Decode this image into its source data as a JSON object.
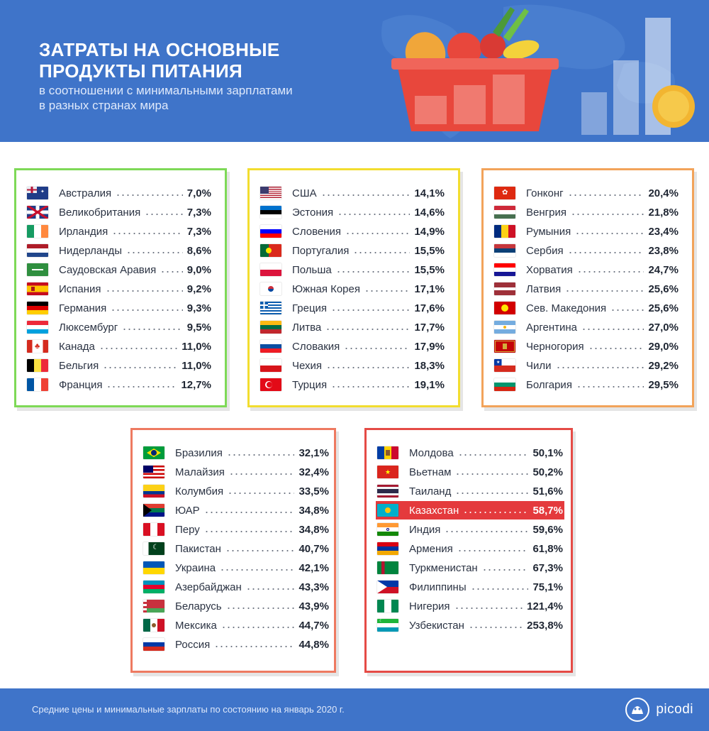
{
  "header": {
    "title_line1": "ЗАТРАТЫ НА ОСНОВНЫЕ",
    "title_line2": "ПРОДУКТЫ ПИТАНИЯ",
    "subtitle_line1": "в соотношении с минимальными зарплатами",
    "subtitle_line2": "в разных странах мира",
    "background_color": "#3f74c9"
  },
  "groups": [
    {
      "accent": "#7ed957",
      "rows": [
        {
          "country": "Австралия",
          "value": "7,0%",
          "flag": "australia"
        },
        {
          "country": "Великобритания",
          "value": "7,3%",
          "flag": "uk"
        },
        {
          "country": "Ирландия",
          "value": "7,3%",
          "flag": "ireland"
        },
        {
          "country": "Нидерланды",
          "value": "8,6%",
          "flag": "netherlands"
        },
        {
          "country": "Саудовская Аравия",
          "value": "9,0%",
          "flag": "saudi"
        },
        {
          "country": "Испания",
          "value": "9,2%",
          "flag": "spain"
        },
        {
          "country": "Германия",
          "value": "9,3%",
          "flag": "germany"
        },
        {
          "country": "Люксембург",
          "value": "9,5%",
          "flag": "luxembourg"
        },
        {
          "country": "Канада",
          "value": "11,0%",
          "flag": "canada"
        },
        {
          "country": "Бельгия",
          "value": "11,0%",
          "flag": "belgium"
        },
        {
          "country": "Франция",
          "value": "12,7%",
          "flag": "france"
        }
      ]
    },
    {
      "accent": "#f2dd2f",
      "rows": [
        {
          "country": "США",
          "value": "14,1%",
          "flag": "usa"
        },
        {
          "country": "Эстония",
          "value": "14,6%",
          "flag": "estonia"
        },
        {
          "country": "Словения",
          "value": "14,9%",
          "flag": "slovenia"
        },
        {
          "country": "Португалия",
          "value": "15,5%",
          "flag": "portugal"
        },
        {
          "country": "Польша",
          "value": "15,5%",
          "flag": "poland"
        },
        {
          "country": "Южная Корея",
          "value": "17,1%",
          "flag": "korea"
        },
        {
          "country": "Греция",
          "value": "17,6%",
          "flag": "greece"
        },
        {
          "country": "Литва",
          "value": "17,7%",
          "flag": "lithuania"
        },
        {
          "country": "Словакия",
          "value": "17,9%",
          "flag": "slovakia"
        },
        {
          "country": "Чехия",
          "value": "18,3%",
          "flag": "czech"
        },
        {
          "country": "Турция",
          "value": "19,1%",
          "flag": "turkey"
        }
      ]
    },
    {
      "accent": "#f2a35a",
      "rows": [
        {
          "country": "Гонконг",
          "value": "20,4%",
          "flag": "hongkong"
        },
        {
          "country": "Венгрия",
          "value": "21,8%",
          "flag": "hungary"
        },
        {
          "country": "Румыния",
          "value": "23,4%",
          "flag": "romania"
        },
        {
          "country": "Сербия",
          "value": "23,8%",
          "flag": "serbia"
        },
        {
          "country": "Хорватия",
          "value": "24,7%",
          "flag": "croatia"
        },
        {
          "country": "Латвия",
          "value": "25,6%",
          "flag": "latvia"
        },
        {
          "country": "Сев. Македония",
          "value": "25,6%",
          "flag": "macedonia"
        },
        {
          "country": "Аргентина",
          "value": "27,0%",
          "flag": "argentina"
        },
        {
          "country": "Черногория",
          "value": "29,0%",
          "flag": "montenegro"
        },
        {
          "country": "Чили",
          "value": "29,2%",
          "flag": "chile"
        },
        {
          "country": "Болгария",
          "value": "29,5%",
          "flag": "bulgaria"
        }
      ]
    },
    {
      "accent": "#ee7a61",
      "rows": [
        {
          "country": "Бразилия",
          "value": "32,1%",
          "flag": "brazil"
        },
        {
          "country": "Малайзия",
          "value": "32,4%",
          "flag": "malaysia"
        },
        {
          "country": "Колумбия",
          "value": "33,5%",
          "flag": "colombia"
        },
        {
          "country": "ЮАР",
          "value": "34,8%",
          "flag": "southafrica"
        },
        {
          "country": "Перу",
          "value": "34,8%",
          "flag": "peru"
        },
        {
          "country": "Пакистан",
          "value": "40,7%",
          "flag": "pakistan"
        },
        {
          "country": "Украина",
          "value": "42,1%",
          "flag": "ukraine"
        },
        {
          "country": "Азербайджан",
          "value": "43,3%",
          "flag": "azerbaijan"
        },
        {
          "country": "Беларусь",
          "value": "43,9%",
          "flag": "belarus"
        },
        {
          "country": "Мексика",
          "value": "44,7%",
          "flag": "mexico"
        },
        {
          "country": "Россия",
          "value": "44,8%",
          "flag": "russia"
        }
      ]
    },
    {
      "accent": "#e54b46",
      "rows": [
        {
          "country": "Молдова",
          "value": "50,1%",
          "flag": "moldova"
        },
        {
          "country": "Вьетнам",
          "value": "50,2%",
          "flag": "vietnam"
        },
        {
          "country": "Таиланд",
          "value": "51,6%",
          "flag": "thailand"
        },
        {
          "country": "Казахстан",
          "value": "58,7%",
          "flag": "kazakhstan",
          "highlight": true
        },
        {
          "country": "Индия",
          "value": "59,6%",
          "flag": "india"
        },
        {
          "country": "Армения",
          "value": "61,8%",
          "flag": "armenia"
        },
        {
          "country": "Туркменистан",
          "value": "67,3%",
          "flag": "turkmenistan"
        },
        {
          "country": "Филиппины",
          "value": "75,1%",
          "flag": "philippines"
        },
        {
          "country": "Нигерия",
          "value": "121,4%",
          "flag": "nigeria"
        },
        {
          "country": "Узбекистан",
          "value": "253,8%",
          "flag": "uzbekistan"
        }
      ]
    }
  ],
  "footer": {
    "note": "Средние цены и минимальные зарплаты по состоянию на январь 2020 г.",
    "logo_text": "picodi"
  }
}
